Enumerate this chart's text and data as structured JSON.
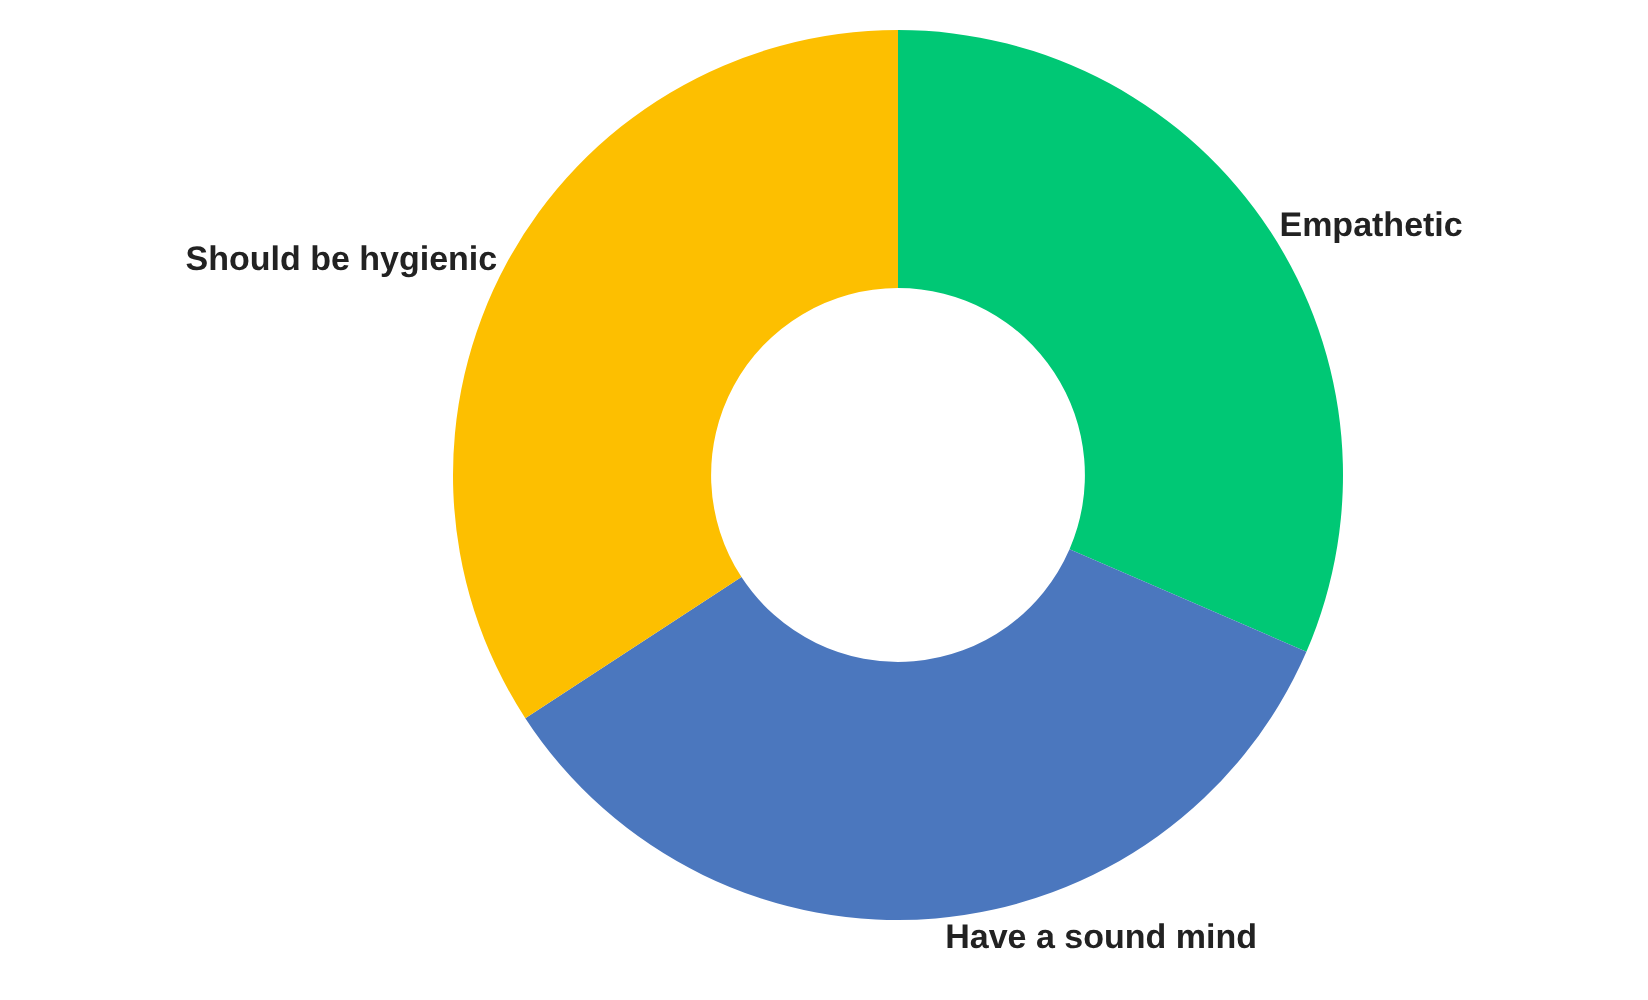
{
  "chart_data": {
    "type": "donut",
    "categories": [
      "Empathetic",
      "Have a sound mind",
      "Should be hygienic"
    ],
    "values": [
      31.5,
      34.3,
      34.2
    ],
    "colors": [
      "#00c875",
      "#4b77be",
      "#fdbf00"
    ],
    "legend": false
  }
}
